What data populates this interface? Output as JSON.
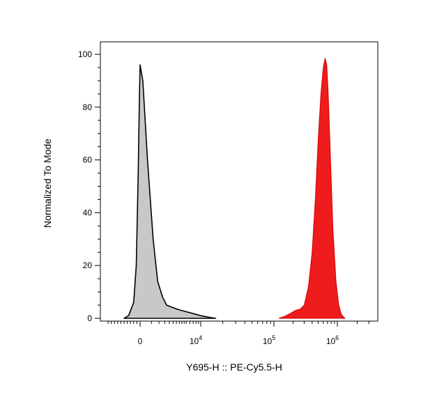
{
  "chart_data": {
    "type": "area",
    "title": "",
    "xlabel": "Y695-H :: PE-Cy5.5-H",
    "ylabel": "Normalized To Mode",
    "x_scale": "biexponential",
    "ylim": [
      0,
      100
    ],
    "yticks": [
      0,
      20,
      40,
      60,
      80,
      100
    ],
    "xticks": [
      {
        "label": "0",
        "base": "0",
        "exp": ""
      },
      {
        "label": "10^4",
        "base": "10",
        "exp": "4"
      },
      {
        "label": "10^5",
        "base": "10",
        "exp": "5"
      },
      {
        "label": "10^6",
        "base": "10",
        "exp": "6"
      }
    ],
    "grid": false,
    "legend": "none",
    "series": [
      {
        "color": "#c8c8c8",
        "stroke": "#000000",
        "points": [
          {
            "x": -2500,
            "y": 0
          },
          {
            "x": -1800,
            "y": 1
          },
          {
            "x": -1000,
            "y": 6
          },
          {
            "x": -600,
            "y": 20
          },
          {
            "x": -300,
            "y": 55
          },
          {
            "x": -100,
            "y": 85
          },
          {
            "x": 0,
            "y": 96
          },
          {
            "x": 100,
            "y": 90
          },
          {
            "x": 300,
            "y": 60
          },
          {
            "x": 600,
            "y": 30
          },
          {
            "x": 900,
            "y": 14
          },
          {
            "x": 1300,
            "y": 8
          },
          {
            "x": 1700,
            "y": 5
          },
          {
            "x": 2500,
            "y": 4
          },
          {
            "x": 3500,
            "y": 3.2
          },
          {
            "x": 5000,
            "y": 2.5
          },
          {
            "x": 7000,
            "y": 1.8
          },
          {
            "x": 10000,
            "y": 1
          },
          {
            "x": 13000,
            "y": 0.4
          },
          {
            "x": 16000,
            "y": 0
          }
        ]
      },
      {
        "color": "#ee1c1c",
        "stroke": "#d10000",
        "points": [
          {
            "x": 120000,
            "y": 0
          },
          {
            "x": 150000,
            "y": 0.8
          },
          {
            "x": 180000,
            "y": 1.8
          },
          {
            "x": 220000,
            "y": 3
          },
          {
            "x": 260000,
            "y": 3.5
          },
          {
            "x": 300000,
            "y": 5
          },
          {
            "x": 350000,
            "y": 12
          },
          {
            "x": 400000,
            "y": 25
          },
          {
            "x": 450000,
            "y": 45
          },
          {
            "x": 500000,
            "y": 68
          },
          {
            "x": 550000,
            "y": 85
          },
          {
            "x": 600000,
            "y": 95
          },
          {
            "x": 640000,
            "y": 98.5
          },
          {
            "x": 680000,
            "y": 96
          },
          {
            "x": 720000,
            "y": 84
          },
          {
            "x": 780000,
            "y": 60
          },
          {
            "x": 850000,
            "y": 34
          },
          {
            "x": 950000,
            "y": 14
          },
          {
            "x": 1050000,
            "y": 5
          },
          {
            "x": 1150000,
            "y": 1.5
          },
          {
            "x": 1300000,
            "y": 0
          }
        ]
      }
    ]
  }
}
